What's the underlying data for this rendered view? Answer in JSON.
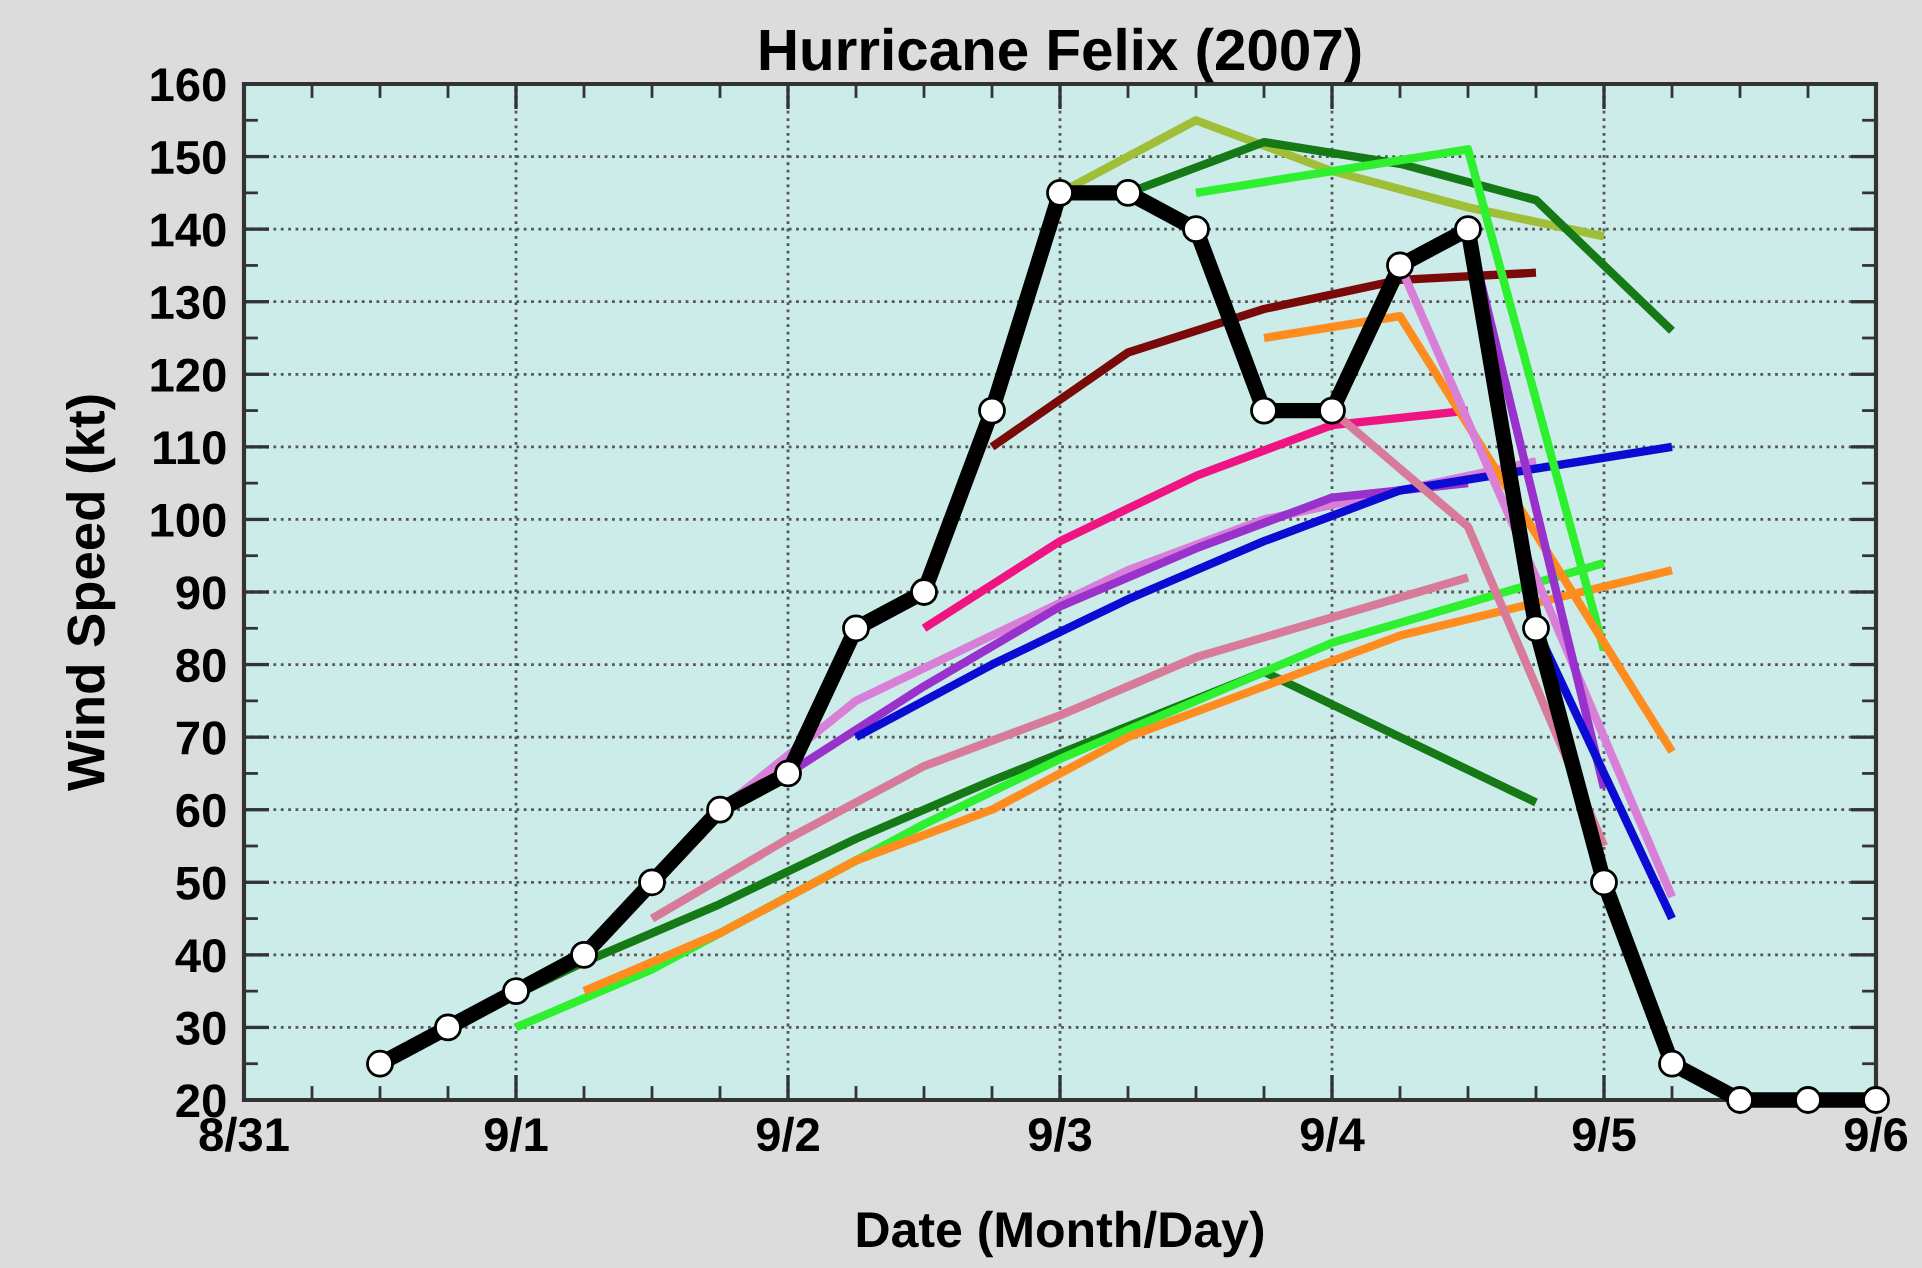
{
  "chart_data": {
    "type": "line",
    "title": "Hurricane Felix (2007)",
    "xlabel": "Date (Month/Day)",
    "ylabel": "Wind Speed (kt)",
    "xlim": [
      "2007-08-31",
      "2007-09-06"
    ],
    "ylim": [
      20,
      160
    ],
    "xticks": [
      {
        "value": "2007-08-31",
        "label": "8/31"
      },
      {
        "value": "2007-08-31T06:00",
        "label": null
      },
      {
        "value": "2007-08-31T12:00",
        "label": null
      },
      {
        "value": "2007-08-31T18:00",
        "label": null
      },
      {
        "value": "2007-09-01",
        "label": "9/1"
      },
      {
        "value": "2007-09-01T06:00",
        "label": null
      },
      {
        "value": "2007-09-01T12:00",
        "label": null
      },
      {
        "value": "2007-09-01T18:00",
        "label": null
      },
      {
        "value": "2007-09-02",
        "label": "9/2"
      },
      {
        "value": "2007-09-02T06:00",
        "label": null
      },
      {
        "value": "2007-09-02T12:00",
        "label": null
      },
      {
        "value": "2007-09-02T18:00",
        "label": null
      },
      {
        "value": "2007-09-03",
        "label": "9/3"
      },
      {
        "value": "2007-09-03T06:00",
        "label": null
      },
      {
        "value": "2007-09-03T12:00",
        "label": null
      },
      {
        "value": "2007-09-03T18:00",
        "label": null
      },
      {
        "value": "2007-09-04",
        "label": "9/4"
      },
      {
        "value": "2007-09-04T06:00",
        "label": null
      },
      {
        "value": "2007-09-04T12:00",
        "label": null
      },
      {
        "value": "2007-09-04T18:00",
        "label": null
      },
      {
        "value": "2007-09-05",
        "label": "9/5"
      },
      {
        "value": "2007-09-05T06:00",
        "label": null
      },
      {
        "value": "2007-09-05T12:00",
        "label": null
      },
      {
        "value": "2007-09-05T18:00",
        "label": null
      },
      {
        "value": "2007-09-06",
        "label": "9/6"
      }
    ],
    "yticks": [
      20,
      {
        "value": 25,
        "label": null
      },
      30,
      {
        "value": 35,
        "label": null
      },
      40,
      {
        "value": 45,
        "label": null
      },
      50,
      {
        "value": 55,
        "label": null
      },
      60,
      {
        "value": 65,
        "label": null
      },
      70,
      {
        "value": 75,
        "label": null
      },
      80,
      {
        "value": 85,
        "label": null
      },
      90,
      {
        "value": 95,
        "label": null
      },
      100,
      {
        "value": 105,
        "label": null
      },
      110,
      {
        "value": 115,
        "label": null
      },
      120,
      {
        "value": 125,
        "label": null
      },
      130,
      {
        "value": 135,
        "label": null
      },
      140,
      {
        "value": 145,
        "label": null
      },
      150,
      {
        "value": 155,
        "label": null
      },
      160
    ],
    "grid": true,
    "line_style": "solid",
    "series": [
      {
        "color": "#157a15",
        "x": [
          "2007-08-31T18:00",
          "2007-09-01T06:00",
          "2007-09-01T18:00",
          "2007-09-02T06:00",
          "2007-09-02T18:00",
          "2007-09-03T18:00",
          "2007-09-04T18:00"
        ],
        "values": [
          30,
          39,
          47,
          56,
          64,
          79,
          61
        ]
      },
      {
        "color": "#2ef02e",
        "x": [
          "2007-09-01T00:00",
          "2007-09-01T12:00",
          "2007-09-02T00:00",
          "2007-09-02T12:00",
          "2007-09-03T00:00",
          "2007-09-04T00:00",
          "2007-09-05T00:00"
        ],
        "values": [
          30,
          38,
          48,
          58,
          67,
          83,
          94
        ]
      },
      {
        "color": "#ff8c1e",
        "x": [
          "2007-09-01T06:00",
          "2007-09-01T18:00",
          "2007-09-02T06:00",
          "2007-09-02T18:00",
          "2007-09-03T06:00",
          "2007-09-04T06:00",
          "2007-09-05T06:00"
        ],
        "values": [
          35,
          43,
          53,
          60,
          70,
          84,
          93
        ]
      },
      {
        "color": "#d87b9b",
        "x": [
          "2007-09-01T12:00",
          "2007-09-02T00:00",
          "2007-09-02T12:00",
          "2007-09-03T00:00",
          "2007-09-03T12:00",
          "2007-09-04T12:00"
        ],
        "values": [
          45,
          56,
          66,
          73,
          81,
          92
        ]
      },
      {
        "color": "#d87fd8",
        "x": [
          "2007-09-01T18:00",
          "2007-09-02T06:00",
          "2007-09-02T18:00",
          "2007-09-03T06:00",
          "2007-09-03T18:00",
          "2007-09-04T18:00"
        ],
        "values": [
          60,
          75,
          84,
          93,
          100,
          108
        ]
      },
      {
        "color": "#9932cc",
        "x": [
          "2007-09-02T00:00",
          "2007-09-02T12:00",
          "2007-09-03T00:00",
          "2007-09-03T12:00",
          "2007-09-04T00:00",
          "2007-09-04T12:00"
        ],
        "values": [
          65,
          77,
          88,
          96,
          103,
          105
        ]
      },
      {
        "color": "#0b0bd4",
        "x": [
          "2007-09-02T06:00",
          "2007-09-02T18:00",
          "2007-09-03T06:00",
          "2007-09-03T18:00",
          "2007-09-04T06:00",
          "2007-09-05T06:00"
        ],
        "values": [
          70,
          80,
          89,
          97,
          104,
          110
        ]
      },
      {
        "color": "#f01482",
        "x": [
          "2007-09-02T12:00",
          "2007-09-03T00:00",
          "2007-09-03T12:00",
          "2007-09-04T00:00",
          "2007-09-04T12:00"
        ],
        "values": [
          85,
          97,
          106,
          113,
          115
        ]
      },
      {
        "color": "#7a0a0a",
        "x": [
          "2007-09-02T18:00",
          "2007-09-03T06:00",
          "2007-09-03T18:00",
          "2007-09-04T06:00",
          "2007-09-04T18:00"
        ],
        "values": [
          110,
          123,
          129,
          133,
          134
        ]
      },
      {
        "color": "#a0bf38",
        "x": [
          "2007-09-03T00:00",
          "2007-09-03T12:00",
          "2007-09-04T00:00",
          "2007-09-04T12:00",
          "2007-09-05T00:00"
        ],
        "values": [
          145,
          155,
          148,
          143,
          139
        ]
      },
      {
        "color": "#157a15",
        "x": [
          "2007-09-03T06:00",
          "2007-09-03T18:00",
          "2007-09-04T06:00",
          "2007-09-04T18:00",
          "2007-09-05T06:00"
        ],
        "values": [
          145,
          152,
          149,
          144,
          126
        ]
      },
      {
        "color": "#2ef02e",
        "x": [
          "2007-09-03T12:00",
          "2007-09-04T00:00",
          "2007-09-04T12:00",
          "2007-09-05T00:00"
        ],
        "values": [
          145,
          148,
          151,
          82
        ]
      },
      {
        "color": "#ff8c1e",
        "x": [
          "2007-09-03T18:00",
          "2007-09-04T06:00",
          "2007-09-04T18:00",
          "2007-09-05T06:00"
        ],
        "values": [
          125,
          128,
          98,
          68
        ]
      },
      {
        "color": "#d87b9b",
        "x": [
          "2007-09-04T00:00",
          "2007-09-04T12:00",
          "2007-09-05T00:00"
        ],
        "values": [
          115,
          99,
          55
        ]
      },
      {
        "color": "#d87fd8",
        "x": [
          "2007-09-04T06:00",
          "2007-09-04T18:00",
          "2007-09-05T06:00"
        ],
        "values": [
          135,
          92,
          48
        ]
      },
      {
        "color": "#9932cc",
        "x": [
          "2007-09-04T12:00",
          "2007-09-05T00:00"
        ],
        "values": [
          140,
          63
        ]
      },
      {
        "color": "#0b0bd4",
        "x": [
          "2007-09-04T18:00",
          "2007-09-05T06:00"
        ],
        "values": [
          85,
          45
        ]
      },
      {
        "color": "#000000",
        "marker": "circle",
        "x": [
          "2007-08-31T12:00",
          "2007-08-31T18:00",
          "2007-09-01T00:00",
          "2007-09-01T06:00",
          "2007-09-01T12:00",
          "2007-09-01T18:00",
          "2007-09-02T00:00",
          "2007-09-02T06:00",
          "2007-09-02T12:00",
          "2007-09-02T18:00",
          "2007-09-03T00:00",
          "2007-09-03T06:00",
          "2007-09-03T12:00",
          "2007-09-03T18:00",
          "2007-09-04T00:00",
          "2007-09-04T06:00",
          "2007-09-04T12:00",
          "2007-09-04T18:00",
          "2007-09-05T00:00",
          "2007-09-05T06:00",
          "2007-09-05T12:00",
          "2007-09-05T18:00",
          "2007-09-06T00:00"
        ],
        "values": [
          25,
          30,
          35,
          40,
          50,
          60,
          65,
          85,
          90,
          115,
          145,
          145,
          140,
          115,
          115,
          135,
          140,
          85,
          50,
          25,
          20,
          20,
          20
        ]
      }
    ]
  }
}
